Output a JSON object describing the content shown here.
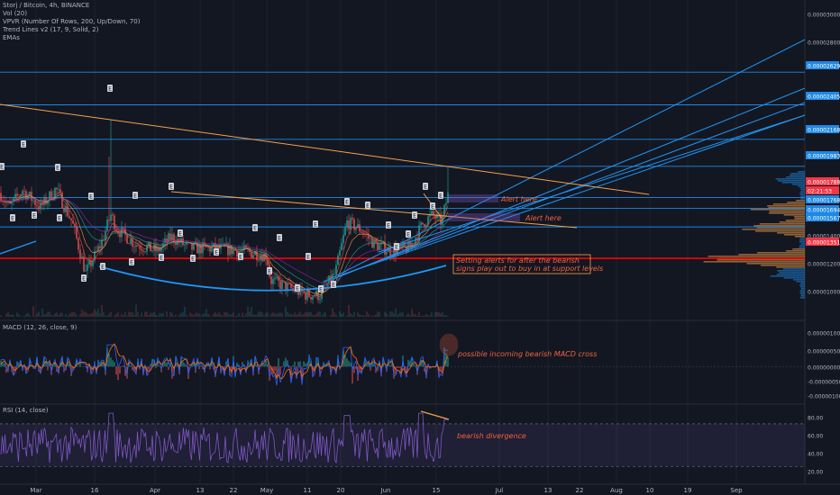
{
  "header": {
    "symbol_line": "Storj / Bitcoin, 4h, BINANCE",
    "indicators": [
      "Vol (20)",
      "VPVR (Number Of Rows, 200, Up/Down, 70)",
      "Trend Lines v2 (17, 9, Solid, 2)",
      "EMAs"
    ]
  },
  "colors": {
    "background": "#131722",
    "grid": "#1e222d",
    "candle_up": "#26a69a",
    "candle_down": "#ef5350",
    "trendline_blue": "#2196f3",
    "trendline_orange": "#f5a04a",
    "support_red": "#ff0000",
    "rsi_purple": "#7e57c2",
    "annotation": "#f0613c",
    "price_label": "#1e88e5",
    "current_price": "#f23645"
  },
  "chart_data": [
    {
      "type": "line",
      "panel": "price",
      "title": "Storj / Bitcoin, 4h, BINANCE",
      "y_axis_ticks": [
        "0.00003000",
        "0.00002800",
        "0.00002629",
        "0.00002405",
        "0.00002168",
        "0.00001983",
        "0.00001788",
        "02:21:53",
        "0.00001768",
        "0.00001694",
        "0.00001567",
        "0.00001400",
        "0.00001351",
        "0.00001200",
        "0.00001000"
      ],
      "horizontal_levels": [
        2.629e-05,
        2.405e-05,
        2.168e-05,
        1.983e-05,
        1.768e-05,
        1.694e-05,
        1.567e-05,
        1.351e-05
      ],
      "current_price": 1.788e-05,
      "countdown": "02:21:53",
      "ylim": [
        9.5e-06,
        3.1e-05
      ],
      "annotations": [
        "Alert here",
        "Alert here",
        "Setting alerts for after the bearish",
        "signs play out to buy in at support levels"
      ],
      "swing_labels": [
        "E",
        "E",
        "E",
        "E",
        "E",
        "E",
        "E",
        "E",
        "E",
        "E",
        "E",
        "E",
        "E",
        "E",
        "E",
        "E",
        "E",
        "E",
        "E",
        "E",
        "E",
        "E",
        "E",
        "E",
        "E",
        "E",
        "E",
        "E",
        "E",
        "E",
        "E",
        "E",
        "E",
        "E",
        "E"
      ]
    },
    {
      "type": "line",
      "panel": "macd",
      "title": "MACD (12, 26, close, 9)",
      "y_axis_ticks": [
        "0.00000100",
        "0.00000050",
        "0.00000000",
        "-0.00000050",
        "-0.00000100"
      ],
      "ylim": [
        -1e-06,
        1.2e-06
      ],
      "annotations": [
        "possible incoming bearish MACD cross"
      ]
    },
    {
      "type": "line",
      "panel": "rsi",
      "title": "RSI (14, close)",
      "y_axis_ticks": [
        "80.00",
        "60.00",
        "40.00",
        "20.00"
      ],
      "ylim": [
        15,
        86
      ],
      "bands": [
        30,
        70
      ],
      "annotations": [
        "bearish divergence"
      ]
    }
  ],
  "x_axis": {
    "labels": [
      "Mar",
      "16",
      "Apr",
      "13",
      "22",
      "May",
      "11",
      "20",
      "Jun",
      "15",
      "Jul",
      "13",
      "22",
      "Aug",
      "10",
      "19",
      "Sep"
    ]
  }
}
